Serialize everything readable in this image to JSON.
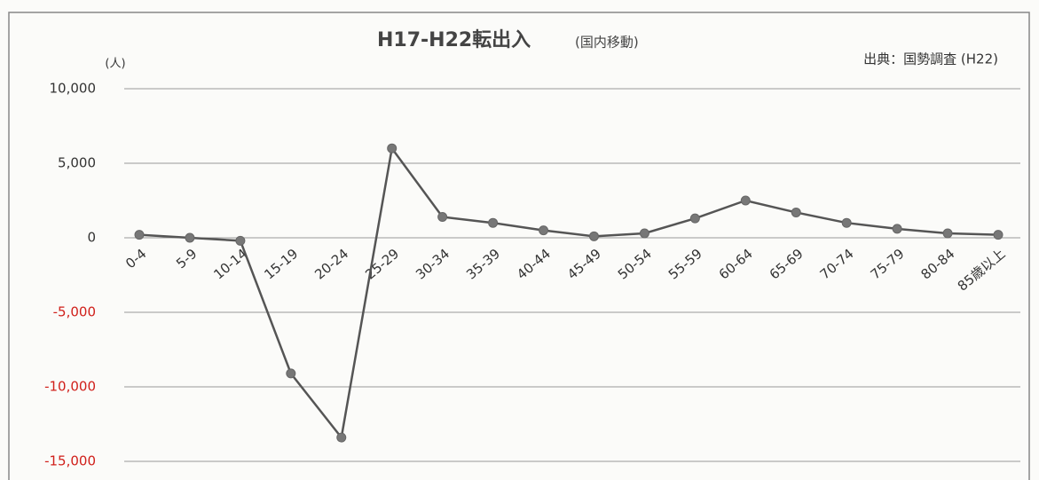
{
  "chart_data": {
    "type": "line",
    "title": "H17-H22転出入",
    "title_note": "(国内移動)",
    "source": "出典：国勢調査 (H22)",
    "y_label": "(人)",
    "categories": [
      "0-4",
      "5-9",
      "10-14",
      "15-19",
      "20-24",
      "25-29",
      "30-34",
      "35-39",
      "40-44",
      "45-49",
      "50-54",
      "55-59",
      "60-64",
      "65-69",
      "70-74",
      "75-79",
      "80-84",
      "85歳以上"
    ],
    "series": [
      {
        "name": "転出入",
        "color": "#555555",
        "values": [
          200,
          0,
          -200,
          -9100,
          -13400,
          6000,
          1400,
          1000,
          500,
          100,
          300,
          1300,
          2500,
          1700,
          1000,
          600,
          300,
          200
        ]
      }
    ],
    "ylim": [
      -15000,
      10000
    ],
    "yticks": [
      {
        "value": -15000,
        "label": "-15,000"
      },
      {
        "value": -10000,
        "label": "-10,000"
      },
      {
        "value": -5000,
        "label": "-5,000"
      },
      0,
      {
        "value": 5000,
        "label": "5,000"
      },
      {
        "value": 10000,
        "label": "10,000"
      }
    ],
    "negative_tick_color": "#d0201b",
    "grid": true
  }
}
